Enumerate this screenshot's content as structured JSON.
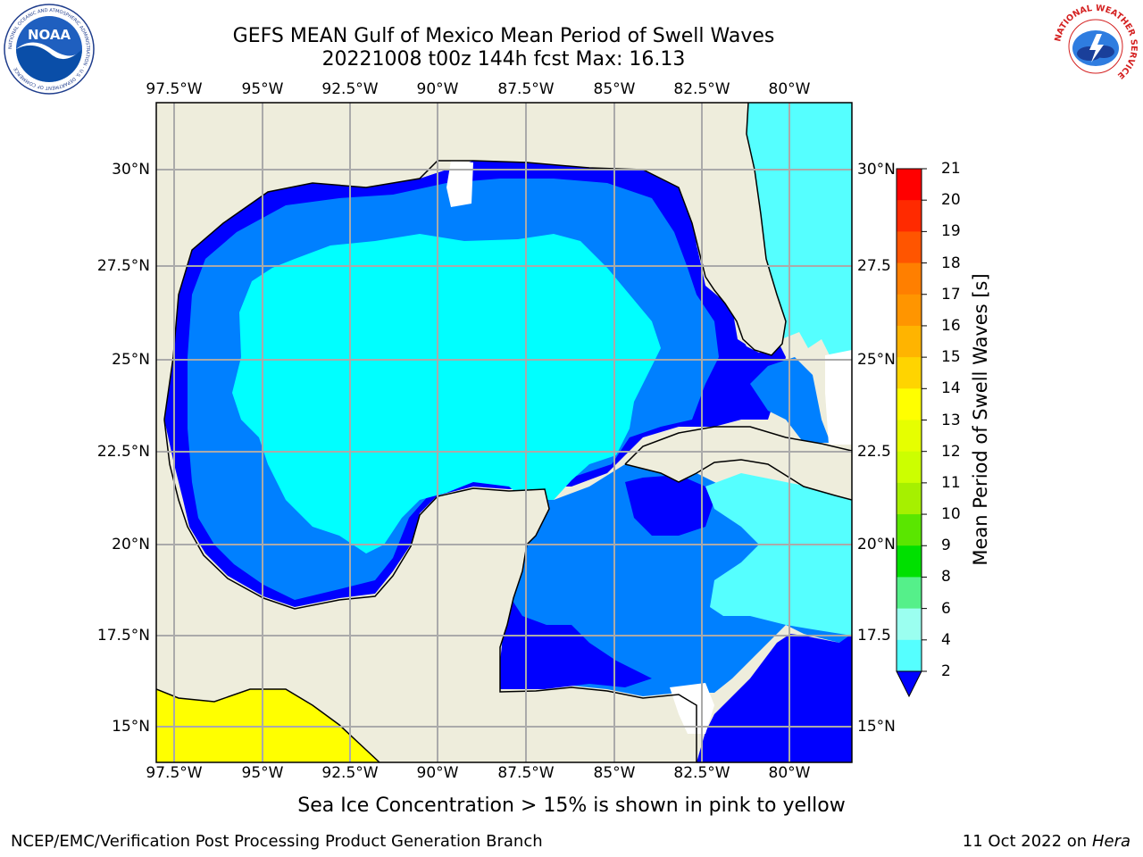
{
  "title": {
    "line1": "GEFS MEAN Gulf of Mexico Mean Period of Swell Waves",
    "line2": "20221008 t00z 144h fcst   Max: 16.13"
  },
  "axes": {
    "lon_ticks": [
      "97.5°W",
      "95°W",
      "92.5°W",
      "90°W",
      "87.5°W",
      "85°W",
      "82.5°W",
      "80°W"
    ],
    "lat_ticks": [
      "30°N",
      "27.5°N",
      "25°N",
      "22.5°N",
      "20°N",
      "17.5°N",
      "15°N"
    ],
    "lat_ticks_right": [
      "30°N",
      "27.5",
      "25°N",
      "22.5",
      "20°N",
      "17.5",
      "15°N"
    ]
  },
  "colorbar": {
    "label": "Mean Period of Swell Waves [s]",
    "ticks": [
      "21",
      "20",
      "19",
      "18",
      "17",
      "16",
      "15",
      "14",
      "13",
      "12",
      "11",
      "10",
      "9",
      "8",
      "6",
      "4",
      "2"
    ],
    "colors": [
      "#ff0000",
      "#ff2a00",
      "#ff5500",
      "#ff7f00",
      "#ff9500",
      "#ffb400",
      "#ffd400",
      "#ffff00",
      "#e6ff00",
      "#ccff00",
      "#a6f000",
      "#5ae600",
      "#00e000",
      "#55f08a",
      "#9bfff0",
      "#55ffff",
      "#00ffff",
      "#0080ff",
      "#0000ff"
    ]
  },
  "caption": "Sea Ice Concentration > 15% is shown in pink to yellow",
  "footer": {
    "left": "NCEP/EMC/Verification Post Processing Product Generation Branch",
    "right_date": "11 Oct 2022 on",
    "right_host": "Hera"
  },
  "logos": {
    "noaa": "NOAA",
    "noaa_ring": "NATIONAL OCEANIC AND ATMOSPHERIC ADMINISTRATION · U.S. DEPARTMENT OF COMMERCE",
    "nws_ring": "NATIONAL WEATHER SERVICE"
  },
  "palette": {
    "land": "#eeeddc",
    "swell_2_4": "#0080ff",
    "swell_lt2": "#0000ff",
    "swell_4_6": "#00ffff",
    "swell_6_8": "#55ffff",
    "ice_yellow": "#ffff00"
  }
}
